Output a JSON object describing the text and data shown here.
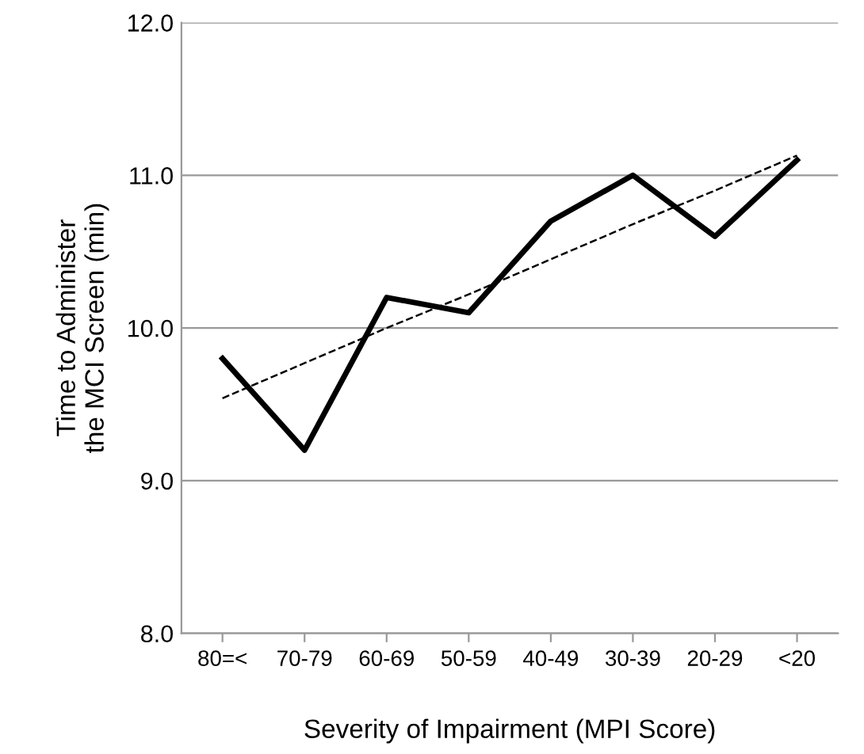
{
  "chart_data": {
    "type": "line",
    "xlabel": "Severity of Impairment (MPI Score)",
    "ylabel": "Time to Administer\nthe MCI Screen (min)",
    "categories": [
      "80=<",
      "70-79",
      "60-69",
      "50-59",
      "40-49",
      "30-39",
      "20-29",
      "<20"
    ],
    "series": [
      {
        "color": "#000000",
        "line_style": "solid",
        "values": [
          9.8,
          9.2,
          10.2,
          10.1,
          10.7,
          11.0,
          10.6,
          11.1
        ]
      },
      {
        "color": "#000000",
        "line_style": "dashed",
        "values": [
          9.54,
          9.77,
          10.0,
          10.22,
          10.45,
          10.68,
          10.9,
          11.13
        ]
      }
    ],
    "ylim": [
      8.0,
      12.0
    ],
    "yticks": [
      {
        "value": 8,
        "label": "8.0"
      },
      {
        "value": 9,
        "label": "9.0"
      },
      {
        "value": 10,
        "label": "10.0"
      },
      {
        "value": 11,
        "label": "11.0"
      },
      {
        "value": 12,
        "label": "12.0"
      }
    ],
    "grid": "y",
    "legend": false,
    "marker": "none"
  }
}
